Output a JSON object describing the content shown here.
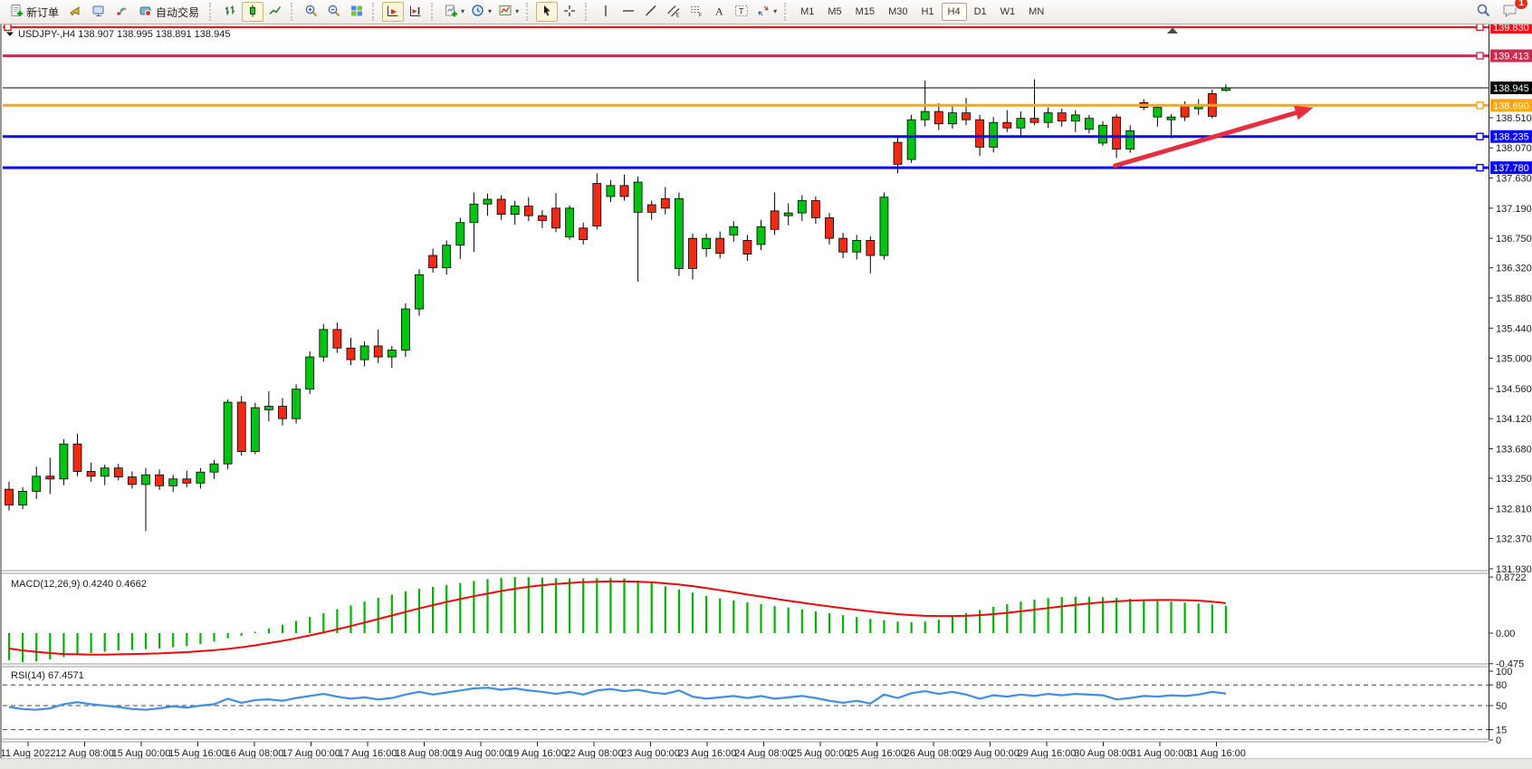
{
  "toolbar": {
    "new_order_label": "新订单",
    "autotrade_label": "自动交易",
    "notifications_badge": "1",
    "timeframes": [
      {
        "label": "M1",
        "active": false
      },
      {
        "label": "M5",
        "active": false
      },
      {
        "label": "M15",
        "active": false
      },
      {
        "label": "M30",
        "active": false
      },
      {
        "label": "H1",
        "active": false
      },
      {
        "label": "H4",
        "active": true
      },
      {
        "label": "D1",
        "active": false
      },
      {
        "label": "W1",
        "active": false
      },
      {
        "label": "MN",
        "active": false
      }
    ]
  },
  "chart": {
    "title": {
      "symbol_period": "USDJPY-,H4",
      "ohlc": "138.907 138.995 138.891 138.945"
    },
    "macd_label": "MACD(12,26,9) 0.4240 0.4662",
    "rsi_label": "RSI(14) 67.4571"
  },
  "chart_data": {
    "type": "candlestick",
    "symbol": "USDJPY-",
    "timeframe": "H4",
    "current_bar": {
      "open": "138.907",
      "high": "138.995",
      "low": "138.891",
      "close": "138.945"
    },
    "price_axis_plain_labels": [
      [
        "138.510",
        138.51
      ],
      [
        "138.070",
        138.07
      ],
      [
        "137.630",
        137.63
      ],
      [
        "137.190",
        137.19
      ],
      [
        "136.750",
        136.75
      ],
      [
        "136.320",
        136.32
      ],
      [
        "135.880",
        135.88
      ],
      [
        "135.440",
        135.44
      ],
      [
        "135.000",
        135.0
      ],
      [
        "134.560",
        134.56
      ],
      [
        "134.120",
        134.12
      ],
      [
        "133.680",
        133.68
      ],
      [
        "133.250",
        133.25
      ],
      [
        "132.810",
        132.81
      ],
      [
        "132.370",
        132.37
      ],
      [
        "131.930",
        131.93
      ]
    ],
    "hlines": [
      {
        "label": "139.830",
        "price": 139.83,
        "color": "#FC0D1B",
        "width": 2,
        "handle_left": true,
        "handle_right": true
      },
      {
        "label": "139.413",
        "price": 139.413,
        "color": "#CE2B50",
        "width": 3,
        "handle_right": true
      },
      {
        "label": "138.945",
        "price": 138.945,
        "color": "#000000",
        "width": 1,
        "role": "current-price"
      },
      {
        "label": "138.690",
        "price": 138.69,
        "color": "#FFA510",
        "width": 3,
        "handle_right": true
      },
      {
        "label": "138.235",
        "price": 138.235,
        "color": "#0A0AF5",
        "width": 3,
        "handle_right": true
      },
      {
        "label": "137.780",
        "price": 137.78,
        "color": "#0A0AF5",
        "width": 3,
        "handle_right": true
      }
    ],
    "time_labels": [
      "11 Aug 2022",
      "12 Aug 08:00",
      "15 Aug 00:00",
      "15 Aug 16:00",
      "16 Aug 08:00",
      "17 Aug 00:00",
      "17 Aug 16:00",
      "18 Aug 08:00",
      "19 Aug 00:00",
      "19 Aug 16:00",
      "22 Aug 08:00",
      "23 Aug 00:00",
      "23 Aug 16:00",
      "24 Aug 08:00",
      "25 Aug 00:00",
      "25 Aug 16:00",
      "26 Aug 08:00",
      "29 Aug 00:00",
      "29 Aug 16:00",
      "30 Aug 08:00",
      "31 Aug 00:00",
      "31 Aug 16:00"
    ],
    "candles": [
      [
        133.09,
        133.2,
        132.78,
        132.86
      ],
      [
        132.86,
        133.12,
        132.8,
        133.06
      ],
      [
        133.06,
        133.42,
        132.95,
        133.28
      ],
      [
        133.28,
        133.55,
        133.02,
        133.24
      ],
      [
        133.24,
        133.82,
        133.15,
        133.75
      ],
      [
        133.75,
        133.9,
        133.28,
        133.35
      ],
      [
        133.35,
        133.48,
        133.2,
        133.28
      ],
      [
        133.28,
        133.45,
        133.15,
        133.4
      ],
      [
        133.4,
        133.46,
        133.22,
        133.27
      ],
      [
        133.27,
        133.35,
        133.1,
        133.16
      ],
      [
        133.16,
        133.4,
        132.48,
        133.3
      ],
      [
        133.3,
        133.38,
        133.08,
        133.14
      ],
      [
        133.14,
        133.3,
        133.05,
        133.24
      ],
      [
        133.24,
        133.36,
        133.12,
        133.18
      ],
      [
        133.18,
        133.4,
        133.1,
        133.34
      ],
      [
        133.34,
        133.52,
        133.24,
        133.46
      ],
      [
        133.46,
        134.4,
        133.38,
        134.36
      ],
      [
        134.36,
        134.45,
        133.58,
        133.64
      ],
      [
        133.64,
        134.35,
        133.6,
        134.28
      ],
      [
        134.25,
        134.52,
        134.08,
        134.3
      ],
      [
        134.3,
        134.42,
        134.02,
        134.12
      ],
      [
        134.12,
        134.62,
        134.05,
        134.55
      ],
      [
        134.55,
        135.1,
        134.48,
        135.02
      ],
      [
        135.02,
        135.5,
        134.95,
        135.42
      ],
      [
        135.42,
        135.52,
        135.08,
        135.15
      ],
      [
        135.15,
        135.3,
        134.9,
        134.98
      ],
      [
        134.98,
        135.25,
        134.88,
        135.18
      ],
      [
        135.18,
        135.42,
        134.93,
        135.02
      ],
      [
        135.02,
        135.18,
        134.86,
        135.12
      ],
      [
        135.12,
        135.8,
        135.02,
        135.72
      ],
      [
        135.72,
        136.3,
        135.62,
        136.22
      ],
      [
        136.5,
        136.6,
        136.25,
        136.32
      ],
      [
        136.32,
        136.72,
        136.22,
        136.65
      ],
      [
        136.65,
        137.05,
        136.45,
        136.98
      ],
      [
        136.98,
        137.42,
        136.55,
        137.25
      ],
      [
        137.25,
        137.4,
        137.08,
        137.32
      ],
      [
        137.32,
        137.38,
        137.02,
        137.1
      ],
      [
        137.1,
        137.3,
        136.95,
        137.22
      ],
      [
        137.22,
        137.35,
        137.0,
        137.08
      ],
      [
        137.08,
        137.16,
        136.9,
        137.01
      ],
      [
        137.19,
        137.41,
        136.84,
        136.9
      ],
      [
        136.77,
        137.23,
        136.73,
        137.19
      ],
      [
        136.9,
        136.98,
        136.66,
        136.73
      ],
      [
        137.55,
        137.7,
        136.88,
        136.93
      ],
      [
        137.36,
        137.6,
        137.28,
        137.52
      ],
      [
        137.52,
        137.68,
        137.3,
        137.36
      ],
      [
        137.13,
        137.65,
        136.12,
        137.57
      ],
      [
        137.24,
        137.3,
        137.02,
        137.13
      ],
      [
        137.33,
        137.5,
        137.1,
        137.19
      ],
      [
        136.31,
        137.42,
        136.2,
        137.33
      ],
      [
        136.75,
        136.82,
        136.15,
        136.31
      ],
      [
        136.6,
        136.82,
        136.48,
        136.75
      ],
      [
        136.75,
        136.85,
        136.46,
        136.53
      ],
      [
        136.8,
        137.0,
        136.7,
        136.92
      ],
      [
        136.72,
        136.8,
        136.42,
        136.52
      ],
      [
        136.66,
        137.02,
        136.58,
        136.92
      ],
      [
        137.15,
        137.42,
        136.8,
        136.88
      ],
      [
        137.08,
        137.26,
        136.94,
        137.12
      ],
      [
        137.12,
        137.38,
        137.0,
        137.3
      ],
      [
        137.3,
        137.36,
        136.96,
        137.05
      ],
      [
        137.05,
        137.12,
        136.66,
        136.75
      ],
      [
        136.75,
        136.83,
        136.46,
        136.55
      ],
      [
        136.55,
        136.8,
        136.44,
        136.72
      ],
      [
        136.72,
        136.78,
        136.24,
        136.5
      ],
      [
        136.5,
        137.42,
        136.44,
        137.35
      ],
      [
        138.15,
        138.22,
        137.7,
        137.83
      ],
      [
        137.9,
        138.55,
        137.85,
        138.48
      ],
      [
        138.48,
        139.05,
        138.38,
        138.6
      ],
      [
        138.6,
        138.72,
        138.33,
        138.42
      ],
      [
        138.42,
        138.7,
        138.35,
        138.58
      ],
      [
        138.58,
        138.8,
        138.4,
        138.48
      ],
      [
        138.48,
        138.55,
        137.95,
        138.08
      ],
      [
        138.08,
        138.52,
        138.0,
        138.44
      ],
      [
        138.44,
        138.62,
        138.3,
        138.36
      ],
      [
        138.36,
        138.6,
        138.22,
        138.5
      ],
      [
        138.5,
        139.07,
        138.4,
        138.44
      ],
      [
        138.44,
        138.66,
        138.36,
        138.58
      ],
      [
        138.58,
        138.64,
        138.38,
        138.46
      ],
      [
        138.46,
        138.62,
        138.3,
        138.55
      ],
      [
        138.34,
        138.55,
        138.28,
        138.5
      ],
      [
        138.14,
        138.46,
        138.1,
        138.4
      ],
      [
        138.52,
        138.56,
        137.92,
        138.05
      ],
      [
        138.05,
        138.4,
        138.0,
        138.32
      ],
      [
        138.73,
        138.78,
        138.62,
        138.66
      ],
      [
        138.52,
        138.7,
        138.38,
        138.66
      ],
      [
        138.48,
        138.56,
        138.21,
        138.52
      ],
      [
        138.69,
        138.75,
        138.46,
        138.52
      ],
      [
        138.64,
        138.78,
        138.55,
        138.69
      ],
      [
        138.86,
        138.92,
        138.5,
        138.53
      ],
      [
        138.907,
        138.995,
        138.891,
        138.945
      ]
    ],
    "colors": {
      "up": "#00C411",
      "down": "#F02B15",
      "wick": "#000000",
      "macd_hist": "#00B400",
      "macd_signal": "#F00909",
      "rsi_line": "#3E8FEA",
      "arrow": "#E62E3E"
    },
    "macd": {
      "name": "MACD",
      "params": "12,26,9",
      "value": 0.424,
      "signal_value": 0.4662,
      "axis_labels": [
        [
          "0.8722",
          0.8722
        ],
        [
          "0.00",
          0.0
        ],
        [
          "-0.475",
          -0.475
        ]
      ],
      "histogram": [
        -0.42,
        -0.45,
        -0.44,
        -0.41,
        -0.37,
        -0.34,
        -0.31,
        -0.29,
        -0.27,
        -0.26,
        -0.25,
        -0.24,
        -0.22,
        -0.2,
        -0.17,
        -0.13,
        -0.08,
        -0.04,
        0.02,
        0.07,
        0.13,
        0.19,
        0.25,
        0.31,
        0.37,
        0.43,
        0.49,
        0.55,
        0.6,
        0.65,
        0.69,
        0.72,
        0.75,
        0.78,
        0.81,
        0.84,
        0.86,
        0.872,
        0.87,
        0.865,
        0.855,
        0.85,
        0.85,
        0.855,
        0.86,
        0.85,
        0.82,
        0.78,
        0.73,
        0.68,
        0.63,
        0.58,
        0.54,
        0.51,
        0.48,
        0.45,
        0.42,
        0.4,
        0.37,
        0.34,
        0.31,
        0.28,
        0.25,
        0.22,
        0.2,
        0.18,
        0.17,
        0.18,
        0.21,
        0.26,
        0.31,
        0.36,
        0.41,
        0.45,
        0.49,
        0.52,
        0.545,
        0.56,
        0.565,
        0.565,
        0.56,
        0.55,
        0.535,
        0.52,
        0.505,
        0.49,
        0.475,
        0.46,
        0.445,
        0.424
      ],
      "signal": [
        -0.24,
        -0.27,
        -0.29,
        -0.31,
        -0.325,
        -0.33,
        -0.335,
        -0.335,
        -0.33,
        -0.325,
        -0.32,
        -0.315,
        -0.305,
        -0.295,
        -0.28,
        -0.265,
        -0.245,
        -0.22,
        -0.19,
        -0.155,
        -0.12,
        -0.08,
        -0.035,
        0.01,
        0.06,
        0.11,
        0.165,
        0.22,
        0.275,
        0.33,
        0.385,
        0.435,
        0.485,
        0.53,
        0.575,
        0.615,
        0.655,
        0.69,
        0.72,
        0.745,
        0.765,
        0.78,
        0.793,
        0.8,
        0.805,
        0.805,
        0.8,
        0.79,
        0.775,
        0.755,
        0.73,
        0.7,
        0.668,
        0.635,
        0.6,
        0.568,
        0.535,
        0.503,
        0.473,
        0.443,
        0.415,
        0.388,
        0.362,
        0.338,
        0.315,
        0.295,
        0.28,
        0.27,
        0.265,
        0.265,
        0.27,
        0.28,
        0.295,
        0.315,
        0.34,
        0.365,
        0.39,
        0.415,
        0.44,
        0.462,
        0.48,
        0.495,
        0.505,
        0.512,
        0.515,
        0.515,
        0.512,
        0.506,
        0.49,
        0.4662
      ]
    },
    "rsi": {
      "name": "RSI",
      "period": 14,
      "value": 67.4571,
      "axis_labels": [
        [
          "100",
          100
        ],
        [
          "80",
          80
        ],
        [
          "50",
          50
        ],
        [
          "15",
          15
        ],
        [
          "0",
          0
        ]
      ],
      "dashed_levels": [
        80,
        50,
        15
      ],
      "series": [
        48,
        45,
        44,
        46,
        52,
        55,
        52,
        50,
        48,
        45,
        44,
        46,
        49,
        47,
        50,
        52,
        60,
        54,
        58,
        59,
        57,
        61,
        64,
        67,
        63,
        60,
        62,
        59,
        61,
        66,
        70,
        66,
        69,
        72,
        75,
        76,
        73,
        75,
        72,
        70,
        67,
        70,
        66,
        72,
        74,
        71,
        73,
        69,
        67,
        72,
        63,
        60,
        62,
        64,
        61,
        64,
        60,
        62,
        64,
        61,
        57,
        54,
        57,
        53,
        66,
        61,
        68,
        71,
        67,
        70,
        66,
        60,
        65,
        63,
        66,
        64,
        67,
        65,
        67,
        66,
        65,
        59,
        61,
        64,
        63,
        65,
        64,
        66,
        70,
        67.46
      ]
    },
    "annotations": [
      {
        "type": "trend-arrow",
        "color": "#E62E3E",
        "stroke_width": 5,
        "from": {
          "bar": 80.9,
          "price": 137.81
        },
        "to": {
          "bar": 95.4,
          "price": 138.655
        }
      }
    ]
  }
}
